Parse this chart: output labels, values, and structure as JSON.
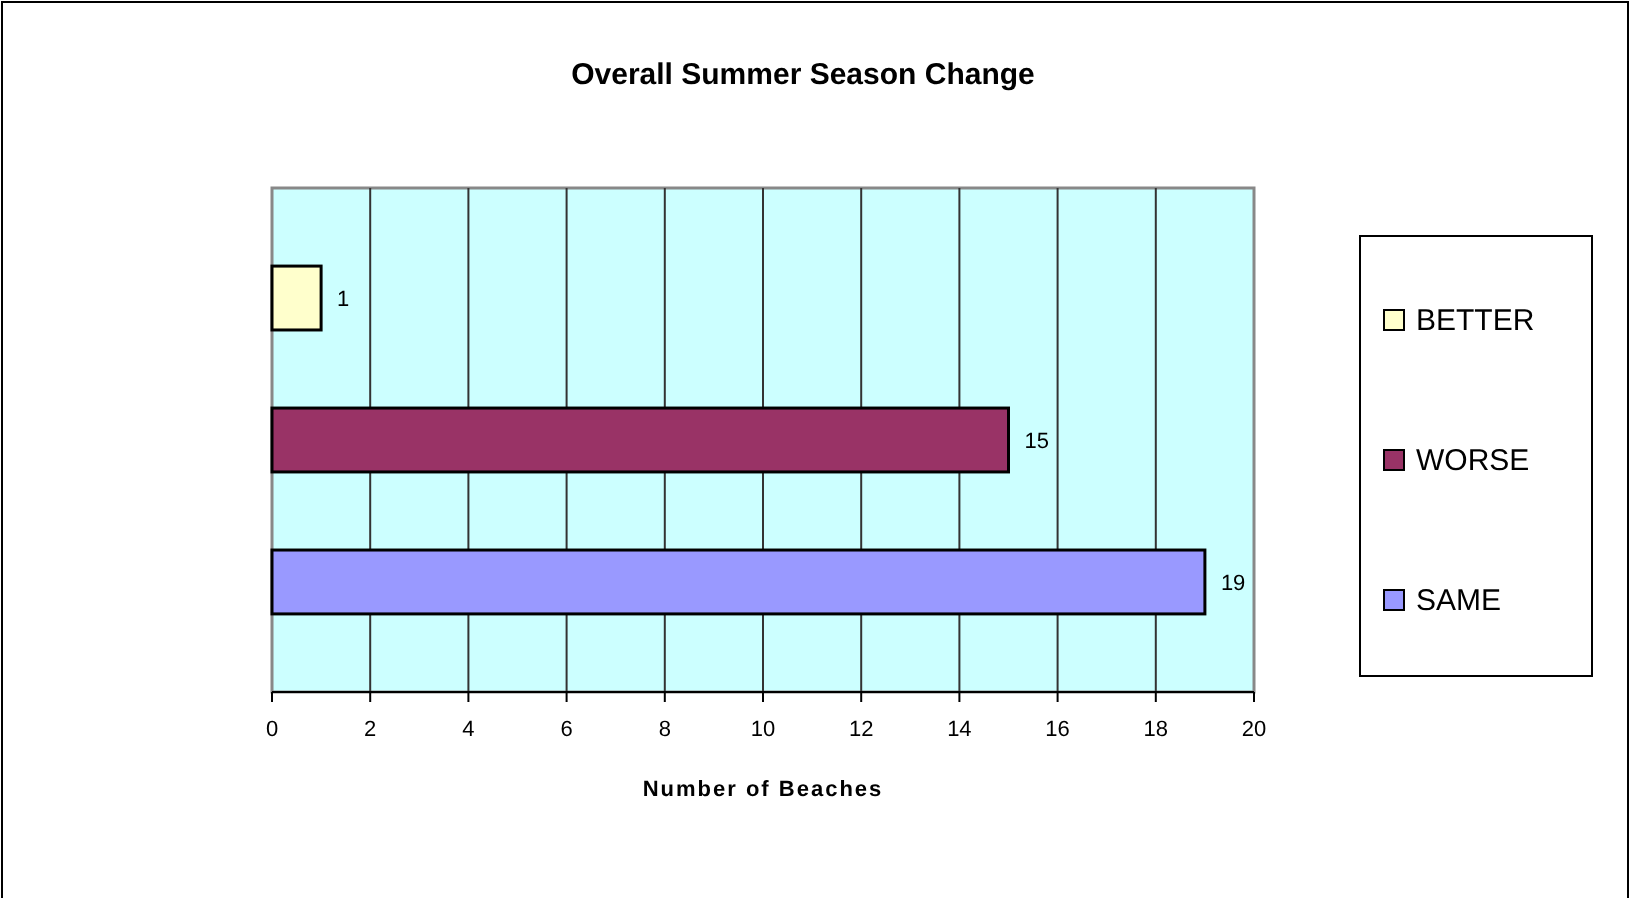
{
  "chart_data": {
    "type": "bar",
    "orientation": "horizontal",
    "title": "Overall Summer Season Change",
    "xlabel": "Number of Beaches",
    "categories": [
      null,
      null,
      null
    ],
    "series": [
      {
        "name": "BETTER",
        "color": "#ffffcc",
        "values": [
          1,
          null,
          null
        ]
      },
      {
        "name": "WORSE",
        "color": "#993366",
        "values": [
          null,
          15,
          null
        ]
      },
      {
        "name": "SAME",
        "color": "#9999ff",
        "values": [
          null,
          null,
          19
        ]
      }
    ],
    "xlim": [
      0,
      20
    ],
    "xticks": [
      0,
      2,
      4,
      6,
      8,
      10,
      12,
      14,
      16,
      18,
      20
    ],
    "grid": "x",
    "legend": "right",
    "data_labels": true
  }
}
